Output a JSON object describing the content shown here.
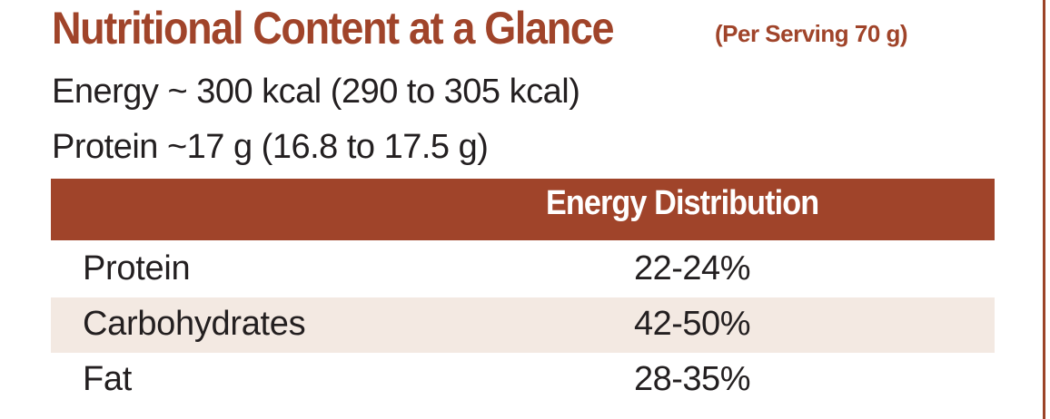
{
  "title": {
    "main": "Nutritional Content at a Glance",
    "sub": "(Per Serving 70 g)"
  },
  "stats": {
    "energy": "Energy ~ 300 kcal (290 to 305 kcal)",
    "protein": "Protein ~17 g (16.8 to 17.5 g)"
  },
  "table": {
    "header": "Energy Distribution",
    "rows": [
      {
        "name": "Protein",
        "value": "22-24%"
      },
      {
        "name": "Carbohydrates",
        "value": "42-50%"
      },
      {
        "name": "Fat",
        "value": "28-35%"
      }
    ]
  },
  "colors": {
    "accent": "#a0442a",
    "row_shade": "#f3e9e2",
    "text": "#231f20"
  }
}
